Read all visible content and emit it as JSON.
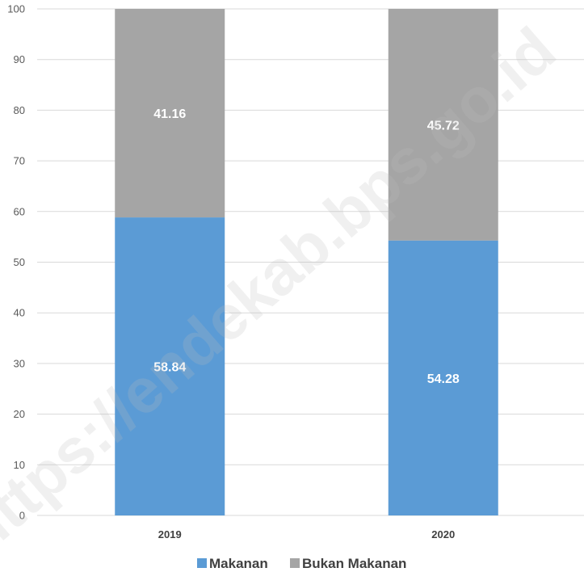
{
  "chart_data": {
    "type": "bar",
    "stacked": true,
    "categories": [
      "2019",
      "2020"
    ],
    "series": [
      {
        "name": "Makanan",
        "values": [
          58.84,
          54.28
        ],
        "color": "#5B9BD5"
      },
      {
        "name": "Bukan Makanan",
        "values": [
          41.16,
          45.72
        ],
        "color": "#A5A5A5"
      }
    ],
    "ylim": [
      0,
      100
    ],
    "yticks": [
      0,
      10,
      20,
      30,
      40,
      50,
      60,
      70,
      80,
      90,
      100
    ],
    "grid": true,
    "legend": "bottom",
    "data_labels": true
  },
  "watermark": {
    "text": "https://endekab.bps.go.id"
  }
}
